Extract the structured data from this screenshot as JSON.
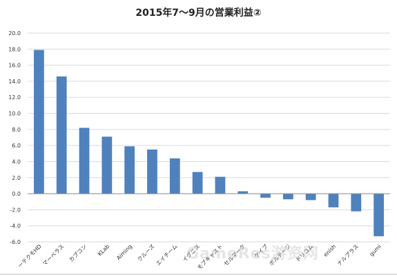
{
  "chart_data": {
    "type": "bar",
    "title": "2015年7〜9月の営業利益②",
    "xlabel": "",
    "ylabel": "",
    "ylim": [
      -6,
      20
    ],
    "yticks": [
      "20.0",
      "18.0",
      "16.0",
      "14.0",
      "12.0",
      "10.0",
      "8.0",
      "6.0",
      "4.0",
      "2.0",
      "0.0",
      "-2.0",
      "-4.0",
      "-6.0"
    ],
    "grid": true,
    "legend": "none",
    "bar_color": "#4F81BD",
    "categories": [
      "ーテクモHD",
      "マーベラス",
      "カプコン",
      "KLab",
      "Aiming",
      "クルーズ",
      "エイチーム",
      "イグニス",
      "モブキャスト",
      "セルマーク",
      "ケイブ",
      "ボルテージ",
      "ドリコム",
      "enish",
      "ナルプラス",
      "gumi"
    ],
    "values": [
      17.9,
      14.6,
      8.2,
      7.1,
      5.9,
      5.5,
      4.4,
      2.7,
      2.1,
      0.3,
      -0.5,
      -0.7,
      -0.8,
      -1.7,
      -2.2,
      -5.3
    ]
  },
  "watermark": "GameRes游资网"
}
